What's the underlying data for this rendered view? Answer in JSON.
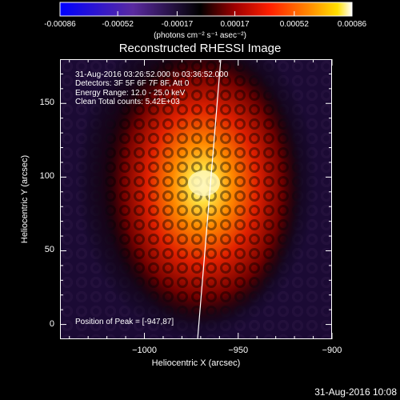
{
  "colors": {
    "background": "#000000",
    "text": "#ffffff",
    "solar_limb_line": "#ffffff"
  },
  "colorbar": {
    "units": "(photons cm⁻² s⁻¹ asec⁻²)",
    "ticks": [
      "-0.00086",
      "-0.00052",
      "-0.00017",
      "0.00017",
      "0.00052",
      "0.00086"
    ],
    "range": [
      -0.00086,
      0.00086
    ],
    "colormap": "blue-purple-black-red-orange-yellow-white"
  },
  "chart_data": {
    "type": "heatmap",
    "title": "Reconstructed RHESSI Image",
    "xlabel": "Heliocentric X (arcsec)",
    "ylabel": "Heliocentric Y (arcsec)",
    "xlim": [
      -1045,
      -900
    ],
    "ylim": [
      -10,
      180
    ],
    "x_ticks": [
      "−1000",
      "−950",
      "−900"
    ],
    "y_ticks": [
      "0",
      "50",
      "100",
      "150"
    ],
    "peak": {
      "x": -947,
      "y": 87
    },
    "annotations": [
      "31-Aug-2016 03:26:52.000 to 03:36:52.000",
      "Detectors: 3F 5F 6F 7F 8F, Att 0",
      "Energy Range: 12.0 - 25.0 keV",
      "Clean     Total counts: 5.42E+03"
    ],
    "peak_label": "Position of Peak = [-947,87]"
  },
  "timestamp": "31-Aug-2016 10:08"
}
